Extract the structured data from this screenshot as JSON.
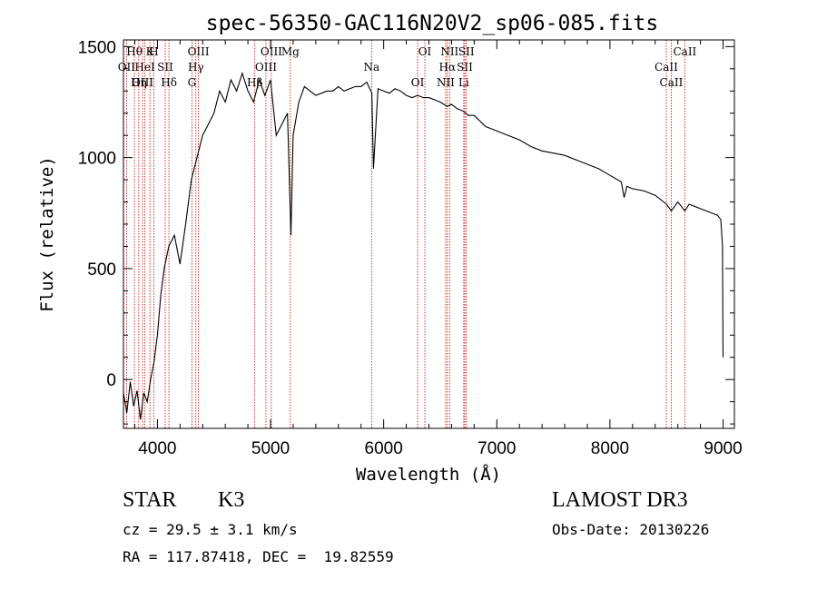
{
  "chart_data": {
    "type": "line",
    "title": "spec-56350-GAC116N20V2_sp06-085.fits",
    "xlabel": "Wavelength (Å)",
    "ylabel": "Flux (relative)",
    "xlim": [
      3700,
      9100
    ],
    "ylim": [
      -220,
      1530
    ],
    "xticks": [
      4000,
      5000,
      6000,
      7000,
      8000,
      9000
    ],
    "yticks": [
      0,
      500,
      1000,
      1500
    ],
    "series": [
      {
        "name": "flux",
        "x": [
          3700,
          3730,
          3760,
          3790,
          3820,
          3850,
          3880,
          3910,
          3940,
          3970,
          4000,
          4030,
          4060,
          4100,
          4150,
          4200,
          4250,
          4300,
          4350,
          4400,
          4450,
          4500,
          4550,
          4600,
          4650,
          4700,
          4750,
          4800,
          4850,
          4900,
          4950,
          5000,
          5050,
          5100,
          5150,
          5180,
          5200,
          5250,
          5300,
          5350,
          5400,
          5450,
          5500,
          5550,
          5600,
          5650,
          5700,
          5750,
          5800,
          5850,
          5895,
          5910,
          5950,
          6000,
          6050,
          6100,
          6150,
          6200,
          6250,
          6300,
          6350,
          6400,
          6450,
          6500,
          6563,
          6600,
          6650,
          6700,
          6750,
          6800,
          6900,
          7000,
          7100,
          7200,
          7300,
          7400,
          7500,
          7600,
          7700,
          7800,
          7900,
          8000,
          8100,
          8125,
          8150,
          8200,
          8300,
          8400,
          8500,
          8542,
          8600,
          8662,
          8700,
          8800,
          8900,
          8950,
          8980,
          8995,
          9000
        ],
        "y": [
          -60,
          -150,
          -10,
          -120,
          -50,
          -180,
          -60,
          -100,
          0,
          80,
          200,
          380,
          500,
          600,
          650,
          520,
          700,
          900,
          1000,
          1100,
          1150,
          1200,
          1300,
          1250,
          1350,
          1300,
          1380,
          1300,
          1250,
          1350,
          1280,
          1350,
          1100,
          1150,
          1200,
          650,
          1100,
          1250,
          1320,
          1300,
          1280,
          1290,
          1300,
          1300,
          1320,
          1300,
          1310,
          1320,
          1320,
          1340,
          1290,
          950,
          1310,
          1300,
          1290,
          1310,
          1300,
          1280,
          1270,
          1280,
          1270,
          1270,
          1260,
          1250,
          1230,
          1240,
          1220,
          1210,
          1190,
          1190,
          1140,
          1120,
          1100,
          1080,
          1050,
          1030,
          1020,
          1010,
          990,
          970,
          950,
          920,
          890,
          820,
          870,
          860,
          850,
          830,
          790,
          760,
          800,
          760,
          790,
          770,
          750,
          740,
          720,
          600,
          100
        ]
      }
    ],
    "lines": [
      {
        "name": "Hθ",
        "wl": 3797
      },
      {
        "name": "OII",
        "wl": 3727
      },
      {
        "name": "OIII",
        "wl": 3869
      },
      {
        "name": "K",
        "wl": 3934
      },
      {
        "name": "HeI",
        "wl": 3889
      },
      {
        "name": "Hη",
        "wl": 3835
      },
      {
        "name": "H",
        "wl": 3969
      },
      {
        "name": "SII",
        "wl": 4069
      },
      {
        "name": "Hδ",
        "wl": 4102
      },
      {
        "name": "OIII",
        "wl": 4363
      },
      {
        "name": "Hγ",
        "wl": 4340
      },
      {
        "name": "G",
        "wl": 4305
      },
      {
        "name": "OIII",
        "wl": 5007
      },
      {
        "name": "OIII",
        "wl": 4959
      },
      {
        "name": "Hβ",
        "wl": 4861
      },
      {
        "name": "Mg",
        "wl": 5175
      },
      {
        "name": "Na",
        "wl": 5893
      },
      {
        "name": "OI",
        "wl": 6300
      },
      {
        "name": "OI",
        "wl": 6364
      },
      {
        "name": "Hα",
        "wl": 6563
      },
      {
        "name": "NII",
        "wl": 6548
      },
      {
        "name": "NII",
        "wl": 6583
      },
      {
        "name": "SII",
        "wl": 6717
      },
      {
        "name": "Li",
        "wl": 6708
      },
      {
        "name": "SII",
        "wl": 6731
      },
      {
        "name": "CaII",
        "wl": 8498
      },
      {
        "name": "CaII",
        "wl": 8542
      },
      {
        "name": "CaII",
        "wl": 8662
      }
    ]
  },
  "info": {
    "class": "STAR",
    "subclass": "K3",
    "survey": "LAMOST DR3",
    "cz": "cz = 29.5 ± 3.1 km/s",
    "obs_date": "Obs-Date: 20130226",
    "coords": "RA = 117.87418, DEC =  19.82559"
  },
  "colors": {
    "spectrum": "#000000",
    "line_marker": "#cc0000",
    "background": "#ffffff"
  }
}
